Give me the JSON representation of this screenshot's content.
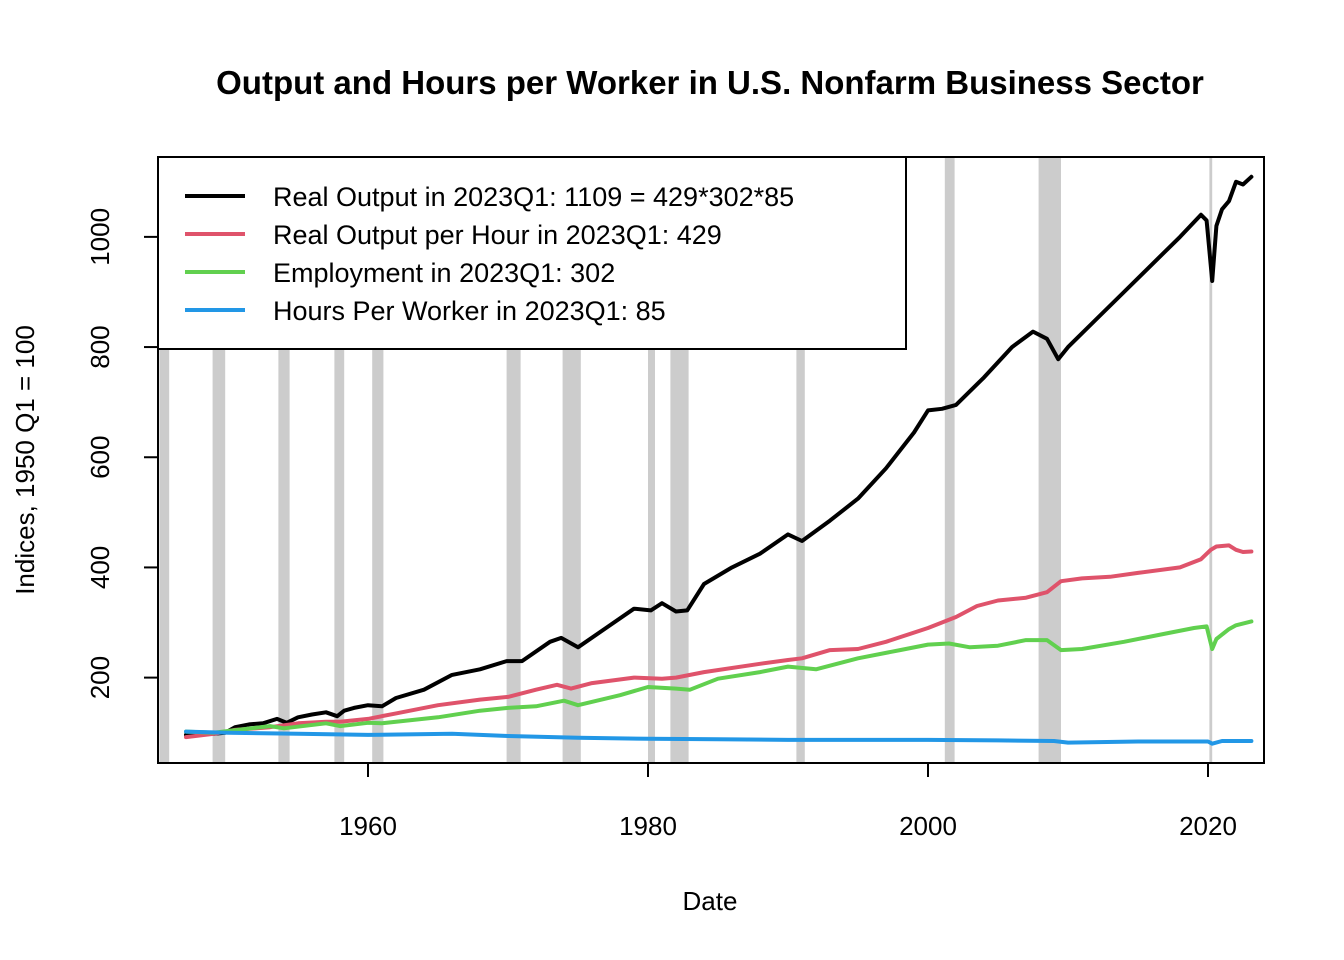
{
  "chart_data": {
    "type": "line",
    "title": "Output and Hours per Worker in U.S. Nonfarm Business Sector",
    "xlabel": "Date",
    "ylabel": "Indices, 1950 Q1 = 100",
    "xlim": [
      1945,
      2024
    ],
    "ylim": [
      45,
      1145
    ],
    "x_ticks": [
      1960,
      1980,
      2000,
      2020
    ],
    "x_tick_labels": [
      "1960",
      "1980",
      "2000",
      "2020"
    ],
    "y_ticks": [
      200,
      400,
      600,
      800,
      1000
    ],
    "y_tick_labels": [
      "200",
      "400",
      "600",
      "800",
      "1000"
    ],
    "legend_position": "top-left",
    "recessions": [
      [
        1945.1,
        1945.8
      ],
      [
        1948.9,
        1949.8
      ],
      [
        1953.6,
        1954.4
      ],
      [
        1957.6,
        1958.3
      ],
      [
        1960.3,
        1961.1
      ],
      [
        1969.9,
        1970.9
      ],
      [
        1973.9,
        1975.2
      ],
      [
        1980.0,
        1980.5
      ],
      [
        1981.6,
        1982.9
      ],
      [
        1990.6,
        1991.2
      ],
      [
        2001.2,
        2001.9
      ],
      [
        2007.9,
        2009.5
      ],
      [
        2020.1,
        2020.3
      ]
    ],
    "series": [
      {
        "name": "Real Output in 2023Q1: 1109 = 429*302*85",
        "color": "#000000",
        "x": [
          1947.0,
          1948.0,
          1949.0,
          1949.8,
          1950.5,
          1951.5,
          1952.5,
          1953.5,
          1954.2,
          1955.0,
          1956.0,
          1957.0,
          1957.8,
          1958.3,
          1959.0,
          1960.0,
          1961.0,
          1962.0,
          1964.0,
          1966.0,
          1968.0,
          1969.9,
          1971.0,
          1973.0,
          1973.8,
          1975.0,
          1977.0,
          1979.0,
          1980.2,
          1981.0,
          1982.0,
          1982.8,
          1984.0,
          1986.0,
          1988.0,
          1990.0,
          1991.0,
          1993.0,
          1995.0,
          1997.0,
          1999.0,
          2000.0,
          2001.0,
          2002.0,
          2004.0,
          2006.0,
          2007.5,
          2008.5,
          2009.3,
          2010.0,
          2012.0,
          2014.0,
          2016.0,
          2018.0,
          2019.5,
          2019.9,
          2020.3,
          2020.6,
          2021.0,
          2021.5,
          2022.0,
          2022.5,
          2023.1
        ],
        "values": [
          96,
          100,
          98,
          100,
          110,
          115,
          117,
          125,
          118,
          128,
          133,
          137,
          130,
          140,
          145,
          150,
          148,
          163,
          178,
          205,
          215,
          230,
          230,
          265,
          272,
          255,
          290,
          325,
          322,
          335,
          320,
          322,
          370,
          400,
          425,
          460,
          448,
          485,
          525,
          580,
          645,
          685,
          688,
          695,
          745,
          800,
          828,
          815,
          778,
          800,
          850,
          900,
          950,
          1000,
          1040,
          1030,
          920,
          1020,
          1050,
          1065,
          1100,
          1095,
          1109
        ]
      },
      {
        "name": "Real Output per Hour in 2023Q1: 429",
        "color": "#DF536B",
        "x": [
          1947.0,
          1949.0,
          1950.5,
          1953.0,
          1955.0,
          1957.0,
          1958.0,
          1960.0,
          1962.0,
          1965.0,
          1968.0,
          1970.0,
          1972.0,
          1973.5,
          1974.5,
          1976.0,
          1979.0,
          1981.0,
          1982.0,
          1984.0,
          1988.0,
          1990.0,
          1991.0,
          1993.0,
          1995.0,
          1997.0,
          2000.0,
          2002.0,
          2003.5,
          2005.0,
          2007.0,
          2008.5,
          2009.5,
          2011.0,
          2013.0,
          2015.0,
          2018.0,
          2019.5,
          2020.2,
          2020.6,
          2021.5,
          2022.0,
          2022.5,
          2023.1
        ],
        "values": [
          92,
          98,
          105,
          110,
          117,
          120,
          120,
          125,
          135,
          150,
          160,
          165,
          178,
          187,
          180,
          190,
          200,
          198,
          200,
          210,
          225,
          232,
          235,
          250,
          252,
          265,
          290,
          310,
          330,
          340,
          345,
          355,
          375,
          380,
          383,
          390,
          400,
          415,
          432,
          438,
          440,
          432,
          428,
          429
        ]
      },
      {
        "name": "Employment in 2023Q1: 302",
        "color": "#61D04F",
        "x": [
          1947.0,
          1949.0,
          1950.0,
          1953.0,
          1954.0,
          1957.0,
          1958.0,
          1960.0,
          1961.0,
          1965.0,
          1968.0,
          1970.0,
          1972.0,
          1974.0,
          1975.0,
          1978.0,
          1980.0,
          1982.0,
          1983.0,
          1985.0,
          1988.0,
          1990.0,
          1992.0,
          1995.0,
          1998.0,
          2000.0,
          2001.5,
          2003.0,
          2005.0,
          2007.0,
          2008.5,
          2009.5,
          2011.0,
          2014.0,
          2017.0,
          2019.0,
          2019.9,
          2020.3,
          2020.6,
          2021.0,
          2021.5,
          2022.0,
          2023.1
        ],
        "values": [
          102,
          100,
          103,
          112,
          108,
          117,
          112,
          118,
          117,
          128,
          140,
          145,
          148,
          158,
          150,
          168,
          183,
          180,
          178,
          198,
          210,
          220,
          215,
          235,
          250,
          260,
          262,
          255,
          258,
          268,
          268,
          250,
          252,
          265,
          280,
          290,
          293,
          252,
          270,
          278,
          288,
          295,
          302
        ]
      },
      {
        "name": "Hours Per Worker in 2023Q1: 85",
        "color": "#2297E6",
        "x": [
          1947.0,
          1950.0,
          1955.0,
          1960.0,
          1966.0,
          1970.0,
          1975.0,
          1980.0,
          1985.0,
          1990.0,
          1995.0,
          2000.0,
          2005.0,
          2009.0,
          2010.0,
          2015.0,
          2020.0,
          2020.3,
          2021.0,
          2023.1
        ],
        "values": [
          102,
          100,
          98,
          96,
          98,
          94,
          91,
          89,
          88,
          87,
          87,
          87,
          86,
          85,
          82,
          84,
          84,
          80,
          85,
          85
        ]
      }
    ]
  }
}
